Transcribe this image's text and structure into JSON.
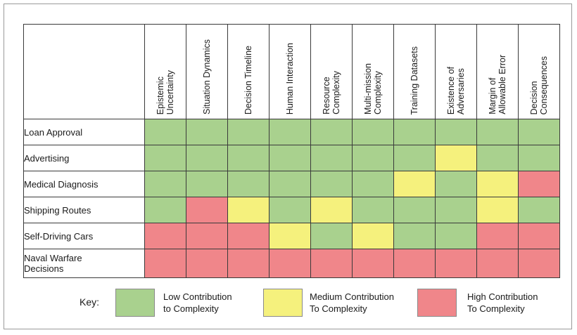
{
  "colors": {
    "low": "#a9d18e",
    "medium": "#f5f17d",
    "high": "#f0868a"
  },
  "columns": [
    "Epistemic\nUncertainty",
    "Situation Dynamics",
    "Decision Timeline",
    "Human Interaction",
    "Resource\nComplexity",
    "Multi-mission\nComplexity",
    "Training Datasets",
    "Existence of\nAdversaries",
    "Margin of\nAllowable Error",
    "Decision\nConsequences"
  ],
  "rows": [
    {
      "label": "Loan Approval",
      "cells": [
        "low",
        "low",
        "low",
        "low",
        "low",
        "low",
        "low",
        "low",
        "low",
        "low"
      ]
    },
    {
      "label": "Advertising",
      "cells": [
        "low",
        "low",
        "low",
        "low",
        "low",
        "low",
        "low",
        "medium",
        "low",
        "low"
      ]
    },
    {
      "label": "Medical Diagnosis",
      "cells": [
        "low",
        "low",
        "low",
        "low",
        "low",
        "low",
        "medium",
        "low",
        "medium",
        "high"
      ]
    },
    {
      "label": "Shipping Routes",
      "cells": [
        "low",
        "high",
        "medium",
        "low",
        "medium",
        "low",
        "low",
        "low",
        "medium",
        "low"
      ]
    },
    {
      "label": "Self-Driving Cars",
      "cells": [
        "high",
        "high",
        "high",
        "medium",
        "low",
        "medium",
        "low",
        "low",
        "high",
        "high"
      ]
    },
    {
      "label": "Naval Warfare\nDecisions",
      "cells": [
        "high",
        "high",
        "high",
        "high",
        "high",
        "high",
        "high",
        "high",
        "high",
        "high"
      ]
    }
  ],
  "key": {
    "label": "Key:",
    "low": "Low Contribution\nto Complexity",
    "medium": "Medium Contribution\nTo Complexity",
    "high": "High Contribution\nTo Complexity"
  }
}
